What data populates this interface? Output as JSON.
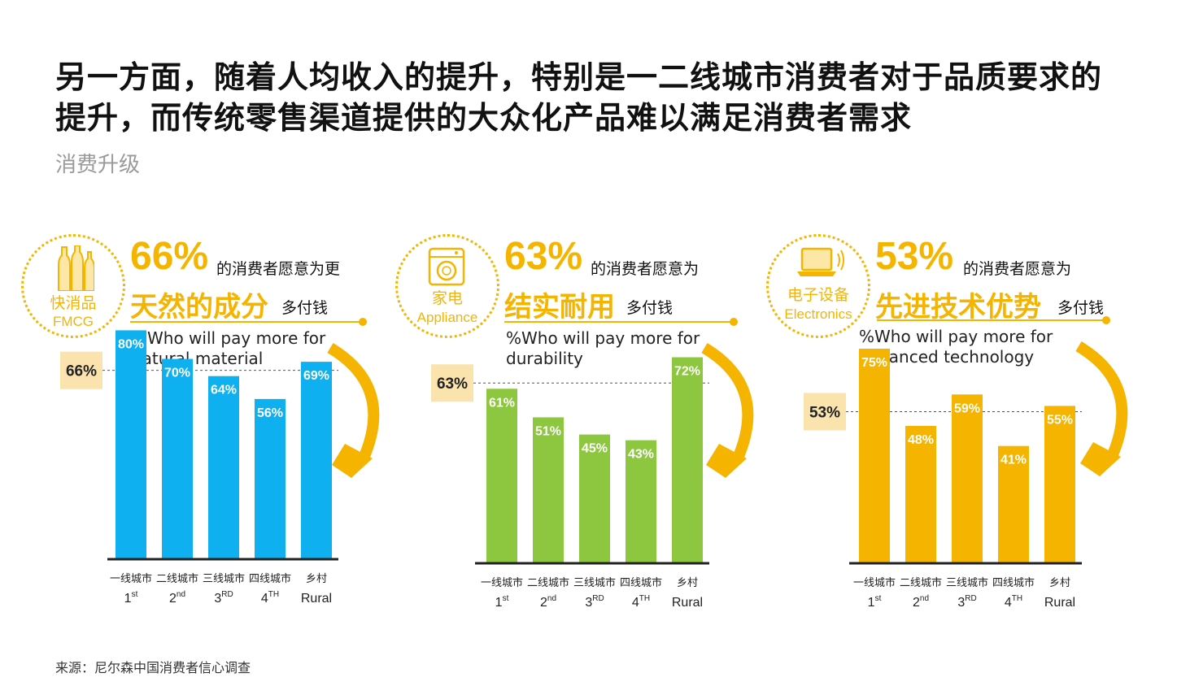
{
  "title": "另一方面，随着人均收入的提升，特别是一二线城市消费者对于品质要求的提升，而传统零售渠道提供的大众化产品难以满足消费者需求",
  "subtitle": "消费升级",
  "source": "来源：尼尔森中国消费者信心调查",
  "colors": {
    "blue": "#0fb0ef",
    "green": "#8dc63f",
    "orange": "#f5b400",
    "callout_bg": "#fbe3ad"
  },
  "panels": [
    {
      "icon": "bottles-icon",
      "icon_cn": "快消品",
      "icon_en": "FMCG",
      "percent": "66%",
      "desc_line1": "的消费者愿意为更",
      "highlight": "天然的成分",
      "desc_line2": "多付钱",
      "english": [
        "%Who will pay more for",
        "natural material"
      ]
    },
    {
      "icon": "washing-machine-icon",
      "icon_cn": "家电",
      "icon_en": "Appliance",
      "percent": "63%",
      "desc_line1": "的消费者愿意为",
      "highlight": "结实耐用",
      "desc_line2": "多付钱",
      "english": [
        "%Who will pay more for",
        "durability"
      ]
    },
    {
      "icon": "laptop-icon",
      "icon_cn": "电子设备",
      "icon_en": "Electronics",
      "percent": "53%",
      "desc_line1": "的消费者愿意为",
      "highlight": "先进技术优势",
      "desc_line2": "多付钱",
      "english": [
        "%Who will pay more for",
        "advanced technology"
      ]
    }
  ],
  "chart_data": [
    {
      "type": "bar",
      "categories": [
        "一线城市",
        "二线城市",
        "三线城市",
        "四线城市",
        "乡村"
      ],
      "categories_en": [
        [
          "1",
          "st"
        ],
        [
          "2",
          "nd"
        ],
        [
          "3",
          "RD"
        ],
        [
          "4",
          "TH"
        ],
        [
          "Rural",
          ""
        ]
      ],
      "values": [
        80,
        70,
        64,
        56,
        69
      ],
      "value_labels": [
        "80%",
        "70%",
        "64%",
        "56%",
        "69%"
      ],
      "reference": 66,
      "reference_label": "66%",
      "color": "#0fb0ef",
      "ylim": [
        0,
        100
      ]
    },
    {
      "type": "bar",
      "categories": [
        "一线城市",
        "二线城市",
        "三线城市",
        "四线城市",
        "乡村"
      ],
      "categories_en": [
        [
          "1",
          "st"
        ],
        [
          "2",
          "nd"
        ],
        [
          "3",
          "RD"
        ],
        [
          "4",
          "TH"
        ],
        [
          "Rural",
          ""
        ]
      ],
      "values": [
        61,
        51,
        45,
        43,
        72
      ],
      "value_labels": [
        "61%",
        "51%",
        "45%",
        "43%",
        "72%"
      ],
      "reference": 63,
      "reference_label": "63%",
      "color": "#8dc63f",
      "ylim": [
        0,
        100
      ]
    },
    {
      "type": "bar",
      "categories": [
        "一线城市",
        "二线城市",
        "三线城市",
        "四线城市",
        "乡村"
      ],
      "categories_en": [
        [
          "1",
          "st"
        ],
        [
          "2",
          "nd"
        ],
        [
          "3",
          "RD"
        ],
        [
          "4",
          "TH"
        ],
        [
          "Rural",
          ""
        ]
      ],
      "values": [
        75,
        48,
        59,
        41,
        55
      ],
      "value_labels": [
        "75%",
        "48%",
        "59%",
        "41%",
        "55%"
      ],
      "reference": 53,
      "reference_label": "53%",
      "color": "#f5b400",
      "ylim": [
        0,
        100
      ]
    }
  ]
}
